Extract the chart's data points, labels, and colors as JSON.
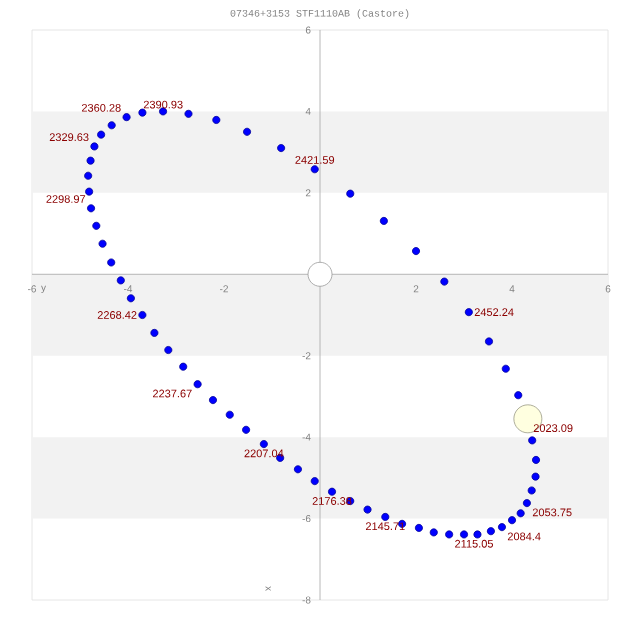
{
  "chart_data": {
    "type": "scatter",
    "title": "07346+3153 STF1110AB (Castore)",
    "xlabel": "y",
    "ylabel": "x",
    "xlim": [
      -6,
      6
    ],
    "ylim": [
      -8,
      6
    ],
    "xticks": [
      -6,
      -4,
      -2,
      2,
      4,
      6
    ],
    "yticks": [
      -8,
      -6,
      -4,
      -2,
      2,
      4,
      6
    ],
    "grid": false,
    "bands": [
      {
        "axis": "y",
        "from": 2,
        "to": 4,
        "color": "#f2f2f2"
      },
      {
        "axis": "y",
        "from": -2,
        "to": 0,
        "color": "#f2f2f2"
      },
      {
        "axis": "y",
        "from": -6,
        "to": -4,
        "color": "#f2f2f2"
      }
    ],
    "series": [
      {
        "color": "#0000ff",
        "x": [
          -3.94,
          -4.15,
          -4.35,
          -4.53,
          -4.66,
          -4.77,
          -4.81,
          -4.83,
          -4.78,
          -4.7,
          -4.56,
          -4.34,
          -4.03,
          -3.7,
          -3.27,
          -2.74,
          -2.16,
          -1.52,
          -0.81,
          -0.11,
          0.63,
          1.33,
          2.0,
          2.59,
          3.1,
          3.52,
          3.87,
          4.13,
          4.42,
          4.5,
          4.49,
          4.41,
          4.31,
          4.18,
          4.0,
          3.79,
          3.56,
          3.28,
          3.0,
          2.69,
          2.37,
          2.06,
          1.71,
          1.36,
          0.99,
          0.63,
          0.25,
          -0.11,
          -0.46,
          -0.83,
          -1.17,
          -1.54,
          -1.88,
          -2.23,
          -2.55,
          -2.85,
          -3.16,
          -3.45,
          -3.7
        ],
        "values": [
          -0.59,
          -0.15,
          0.29,
          0.75,
          1.19,
          1.62,
          2.03,
          2.42,
          2.79,
          3.14,
          3.43,
          3.66,
          3.86,
          3.97,
          4.0,
          3.94,
          3.79,
          3.5,
          3.1,
          2.58,
          1.98,
          1.31,
          0.57,
          -0.18,
          -0.93,
          -1.65,
          -2.32,
          -2.97,
          -4.08,
          -4.56,
          -4.97,
          -5.31,
          -5.62,
          -5.87,
          -6.04,
          -6.21,
          -6.31,
          -6.39,
          -6.39,
          -6.39,
          -6.34,
          -6.23,
          -6.13,
          -5.96,
          -5.78,
          -5.57,
          -5.34,
          -5.08,
          -4.79,
          -4.51,
          -4.17,
          -3.82,
          -3.45,
          -3.09,
          -2.7,
          -2.27,
          -1.86,
          -1.44,
          -1.0
        ]
      },
      {
        "color": "#ffffff",
        "x": [
          0
        ],
        "values": [
          0
        ]
      },
      {
        "color": "#ffffe0",
        "x": [
          4.33
        ],
        "values": [
          -3.55
        ]
      }
    ],
    "annotations": [
      {
        "text": "2023.09",
        "x": 4.33,
        "y": -3.55
      },
      {
        "text": "2053.75",
        "x": 4.31,
        "y": -5.62
      },
      {
        "text": "2084.4",
        "x": 3.79,
        "y": -6.21
      },
      {
        "text": "2115.05",
        "x": 2.69,
        "y": -6.39
      },
      {
        "text": "2145.71",
        "x": 1.36,
        "y": -5.96
      },
      {
        "text": "2176.38",
        "x": 0.25,
        "y": -5.34
      },
      {
        "text": "2207.04",
        "x": -1.17,
        "y": -4.17
      },
      {
        "text": "2237.67",
        "x": -2.55,
        "y": -2.7
      },
      {
        "text": "2268.42",
        "x": -3.7,
        "y": -1.0
      },
      {
        "text": "2298.97",
        "x": -4.77,
        "y": 1.62
      },
      {
        "text": "2329.63",
        "x": -4.7,
        "y": 3.14
      },
      {
        "text": "2360.28",
        "x": -4.03,
        "y": 3.86
      },
      {
        "text": "2390.93",
        "x": -2.74,
        "y": 3.94
      },
      {
        "text": "2421.59",
        "x": -0.11,
        "y": 2.58
      },
      {
        "text": "2452.24",
        "x": 3.1,
        "y": -0.93
      }
    ]
  }
}
